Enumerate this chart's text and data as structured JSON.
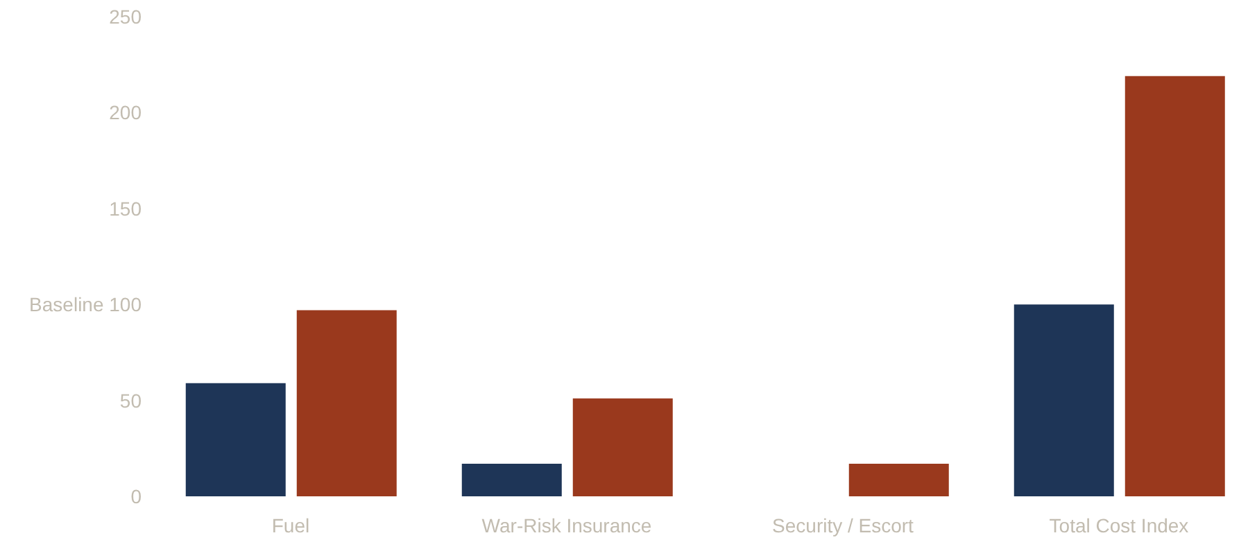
{
  "chart_data": {
    "type": "bar",
    "categories": [
      "Fuel",
      "War-Risk Insurance",
      "Security / Escort",
      "Total Cost Index"
    ],
    "series": [
      {
        "color": "#1e3557",
        "values": [
          59,
          17,
          0,
          100
        ]
      },
      {
        "color": "#9a391d",
        "values": [
          97,
          51,
          17,
          219
        ]
      }
    ],
    "ylim": [
      0,
      250
    ],
    "yticks": [
      0,
      50,
      {
        "value": 100,
        "label": "Baseline 100"
      },
      150,
      200,
      250
    ],
    "grid": false,
    "legend": false
  }
}
